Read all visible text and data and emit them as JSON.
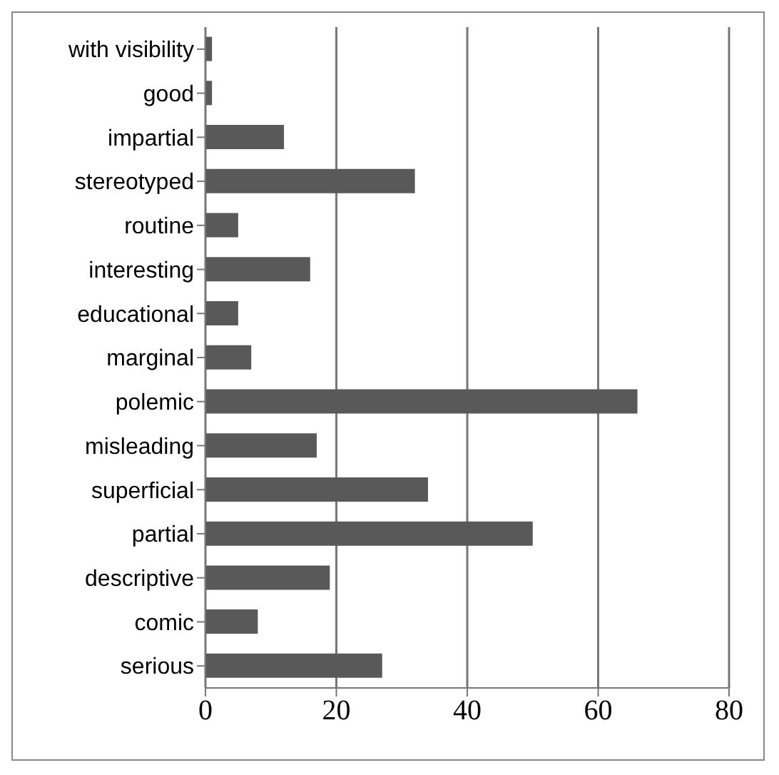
{
  "chart_data": {
    "type": "bar",
    "orientation": "horizontal",
    "categories": [
      "with visibility",
      "good",
      "impartial",
      "stereotyped",
      "routine",
      "interesting",
      "educational",
      "marginal",
      "polemic",
      "misleading",
      "superficial",
      "partial",
      "descriptive",
      "comic",
      "serious"
    ],
    "values": [
      1,
      1,
      12,
      32,
      5,
      16,
      5,
      7,
      66,
      17,
      34,
      50,
      19,
      8,
      27
    ],
    "color": "#595959",
    "xlim": [
      0,
      80
    ],
    "xticks": [
      0,
      20,
      40,
      60,
      80
    ],
    "grid": "x"
  }
}
